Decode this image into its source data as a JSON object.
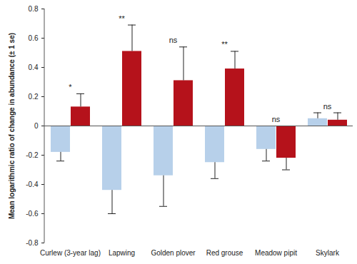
{
  "chart_data": {
    "type": "bar",
    "categories": [
      "Curlew (3-year lag)",
      "Lapwing",
      "Golden plover",
      "Red grouse",
      "Meadow pipit",
      "Skylark"
    ],
    "series": [
      {
        "color": "#b7d0ea",
        "values": [
          -0.18,
          -0.44,
          -0.34,
          -0.25,
          -0.16,
          0.05
        ],
        "errors": [
          0.06,
          0.16,
          0.21,
          0.11,
          0.08,
          0.04
        ]
      },
      {
        "color": "#b5121b",
        "values": [
          0.13,
          0.51,
          0.31,
          0.39,
          -0.22,
          0.04
        ],
        "errors": [
          0.09,
          0.18,
          0.23,
          0.12,
          0.08,
          0.05
        ]
      }
    ],
    "annotations": [
      "*",
      "**",
      "ns",
      "**",
      "ns",
      "ns"
    ],
    "ylabel": "Mean logarithmic ratio of change in abundance (± 1 se)",
    "ylim": [
      -0.8,
      0.8
    ],
    "yticks": [
      -0.8,
      -0.6,
      -0.4,
      -0.2,
      0,
      0.2,
      0.4,
      0.6,
      0.8
    ]
  }
}
